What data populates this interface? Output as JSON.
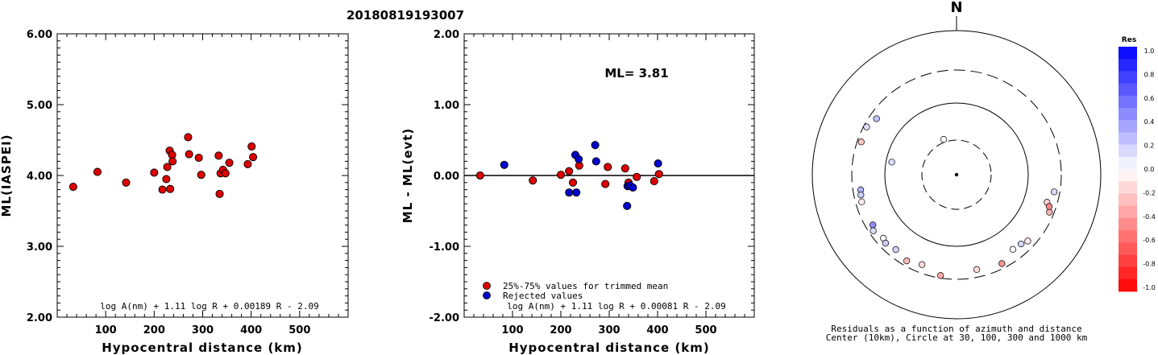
{
  "page_title": "20180819193007",
  "chart_data": [
    {
      "type": "scatter",
      "id": "left",
      "xlabel": "Hypocentral distance (km)",
      "ylabel": "ML(IASPEI)",
      "xlim": [
        0,
        600
      ],
      "ylim": [
        2.0,
        6.0
      ],
      "xticks": [
        "100",
        "200",
        "300",
        "400",
        "500"
      ],
      "yticks": [
        "2.00",
        "3.00",
        "4.00",
        "5.00",
        "6.00"
      ],
      "formula": "log A(nm) + 1.11 log R + 0.00189 R - 2.09",
      "series": [
        {
          "color": "#dd0000",
          "x": [
            33,
            83,
            142,
            200,
            217,
            225,
            227,
            232,
            233,
            237,
            238,
            270,
            272,
            292,
            297,
            333,
            335,
            337,
            342,
            347,
            355,
            393,
            401,
            404
          ],
          "y": [
            3.84,
            4.05,
            3.9,
            4.04,
            3.8,
            3.95,
            4.12,
            4.35,
            3.81,
            4.29,
            4.2,
            4.54,
            4.3,
            4.25,
            4.01,
            4.28,
            3.74,
            4.03,
            4.08,
            4.03,
            4.18,
            4.16,
            4.41,
            4.26
          ]
        }
      ]
    },
    {
      "type": "scatter",
      "id": "middle",
      "xlabel": "Hypocentral distance (km)",
      "ylabel": "ML - ML(evt)",
      "xlim": [
        0,
        600
      ],
      "ylim": [
        -2.0,
        2.0
      ],
      "xticks": [
        "100",
        "200",
        "300",
        "400",
        "500"
      ],
      "yticks": [
        "-2.00",
        "-1.00",
        "0.00",
        "1.00",
        "2.00"
      ],
      "ml_label": "ML= 3.81",
      "formula": "log A(nm) + 1.11 log R + 0.00081 R - 2.09",
      "legend": [
        {
          "label": "25%-75% values for trimmed mean",
          "color": "#dd0000"
        },
        {
          "label": "Rejected values",
          "color": "#0000cc"
        }
      ],
      "series": [
        {
          "name": "25%-75% values for trimmed mean",
          "color": "#dd0000",
          "x": [
            33,
            142,
            200,
            217,
            225,
            238,
            297,
            292,
            333,
            340,
            357,
            393,
            403
          ],
          "y": [
            0.0,
            -0.07,
            0.01,
            0.06,
            -0.1,
            0.14,
            0.12,
            -0.12,
            0.1,
            -0.1,
            -0.02,
            -0.08,
            0.02
          ]
        },
        {
          "name": "Rejected values",
          "color": "#0000cc",
          "x": [
            83,
            217,
            230,
            232,
            237,
            271,
            273,
            337,
            338,
            343,
            349,
            401
          ],
          "y": [
            0.15,
            -0.24,
            0.29,
            -0.24,
            0.23,
            0.43,
            0.2,
            -0.43,
            -0.15,
            -0.14,
            -0.17,
            0.17
          ]
        }
      ]
    },
    {
      "type": "scatter",
      "id": "polar",
      "north_label": "N",
      "caption_line1": "Residuals as a function of azimuth and distance",
      "caption_line2": "Center (10km), Circle at 30, 100, 300 and 1000 km",
      "colorbar_title": "Res",
      "colorbar_ticks": [
        "1.0",
        "0.8",
        "0.6",
        "0.4",
        "0.2",
        "0.0",
        "-0.2",
        "-0.4",
        "-0.6",
        "-0.8",
        "-1.0"
      ],
      "points": [
        {
          "azimuth": 340,
          "distance": 33,
          "residual": 0.0
        },
        {
          "azimuth": 305,
          "distance": 237,
          "residual": 0.23
        },
        {
          "azimuth": 298,
          "distance": 272,
          "residual": 0.12
        },
        {
          "azimuth": 289,
          "distance": 263,
          "residual": -0.24
        },
        {
          "azimuth": 281,
          "distance": 83,
          "residual": 0.15
        },
        {
          "azimuth": 261,
          "distance": 232,
          "residual": 0.29
        },
        {
          "azimuth": 258,
          "distance": 238,
          "residual": 0.2
        },
        {
          "azimuth": 254,
          "distance": 245,
          "residual": -0.07
        },
        {
          "azimuth": 239,
          "distance": 237,
          "residual": 0.43
        },
        {
          "azimuth": 236,
          "distance": 260,
          "residual": 0.15
        },
        {
          "azimuth": 229,
          "distance": 231,
          "residual": -0.02
        },
        {
          "azimuth": 226,
          "distance": 245,
          "residual": 0.2
        },
        {
          "azimuth": 219,
          "distance": 228,
          "residual": 0.17
        },
        {
          "azimuth": 210,
          "distance": 253,
          "residual": -0.27
        },
        {
          "azimuth": 201,
          "distance": 227,
          "residual": -0.15
        },
        {
          "azimuth": 189,
          "distance": 276,
          "residual": -0.33
        },
        {
          "azimuth": 168,
          "distance": 232,
          "residual": -0.14
        },
        {
          "azimuth": 153,
          "distance": 255,
          "residual": -0.42
        },
        {
          "azimuth": 143,
          "distance": 207,
          "residual": 0.02
        },
        {
          "azimuth": 137,
          "distance": 215,
          "residual": 0.17
        },
        {
          "azimuth": 133,
          "distance": 235,
          "residual": -0.08
        },
        {
          "azimuth": 112,
          "distance": 258,
          "residual": -0.3
        },
        {
          "azimuth": 107,
          "distance": 214,
          "residual": -0.17
        },
        {
          "azimuth": 100,
          "distance": 249,
          "residual": 0.15
        },
        {
          "azimuth": 109,
          "distance": 239,
          "residual": -0.47
        }
      ]
    }
  ]
}
